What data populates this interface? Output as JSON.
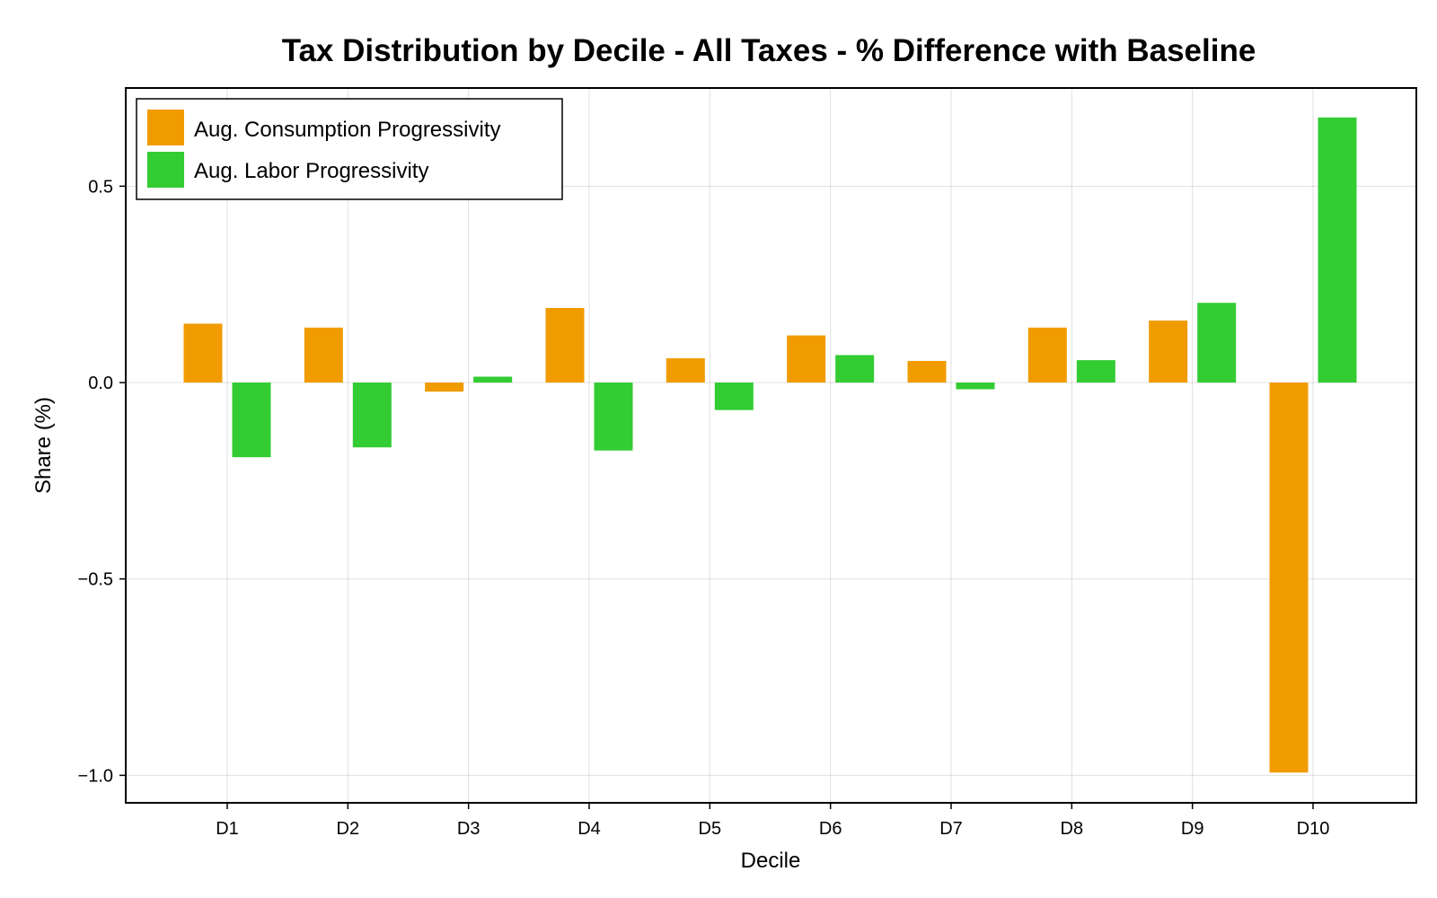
{
  "chart_data": {
    "type": "bar",
    "title": "Tax Distribution by Decile - All Taxes - % Difference with Baseline",
    "xlabel": "Decile",
    "ylabel": "Share (%)",
    "categories": [
      "D1",
      "D2",
      "D3",
      "D4",
      "D5",
      "D6",
      "D7",
      "D8",
      "D9",
      "D10"
    ],
    "series": [
      {
        "name": "Aug. Consumption Progressivity",
        "color": "#f09c00",
        "values": [
          0.15,
          0.14,
          -0.023,
          0.19,
          0.062,
          0.12,
          0.055,
          0.14,
          0.158,
          -0.993
        ]
      },
      {
        "name": "Aug. Labor Progressivity",
        "color": "#33cc33",
        "values": [
          -0.19,
          -0.165,
          0.015,
          -0.173,
          -0.07,
          0.07,
          -0.017,
          0.057,
          0.203,
          0.675
        ]
      }
    ],
    "ylim": [
      -1.07,
      0.75
    ],
    "yticks": [
      -1.0,
      -0.5,
      0.0,
      0.5
    ],
    "ytick_labels": [
      "−1.0",
      "−0.5",
      "0.0",
      "0.5"
    ],
    "grid": true,
    "legend_position": "top-left"
  }
}
